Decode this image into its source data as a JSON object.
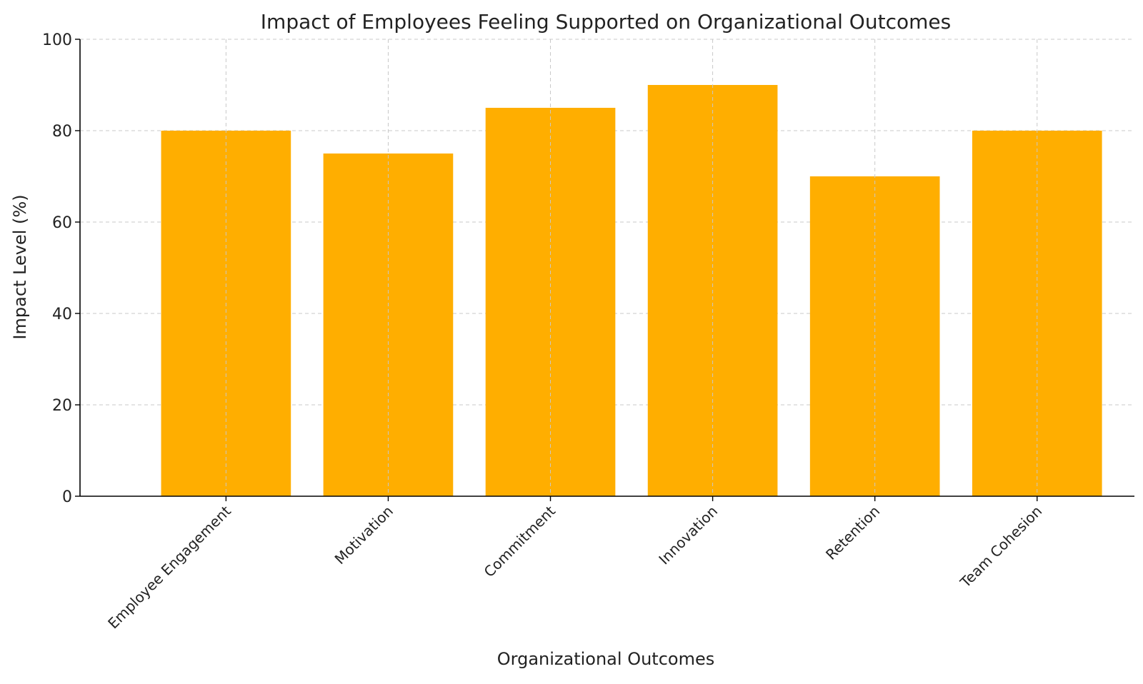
{
  "chart_data": {
    "type": "bar",
    "title": "Impact of Employees Feeling Supported on Organizational Outcomes",
    "xlabel": "Organizational Outcomes",
    "ylabel": "Impact Level (%)",
    "categories": [
      "Employee Engagement",
      "Motivation",
      "Commitment",
      "Innovation",
      "Retention",
      "Team Cohesion"
    ],
    "values": [
      80,
      75,
      85,
      90,
      70,
      80
    ],
    "ylim": [
      0,
      100
    ],
    "yticks": [
      0,
      20,
      40,
      60,
      80,
      100
    ],
    "grid": true,
    "legend": "none",
    "colors": {
      "bar": "#FFAE00",
      "grid": "#c8c8c8",
      "axis": "#000000"
    }
  }
}
